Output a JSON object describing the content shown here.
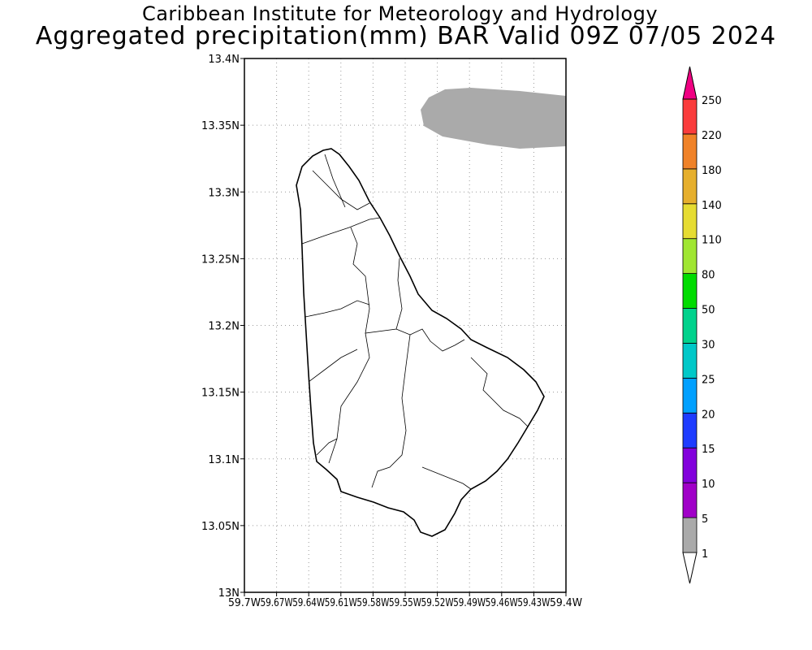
{
  "title": "Caribbean Institute for Meteorology and Hydrology",
  "subtitle": "Aggregated precipitation(mm) BAR Valid 09Z 07/05 2024",
  "map": {
    "lat_range": [
      13.0,
      13.4
    ],
    "lon_range": [
      -59.7,
      -59.4
    ],
    "lat_ticks": [
      "13N",
      "13.05N",
      "13.1N",
      "13.15N",
      "13.2N",
      "13.25N",
      "13.3N",
      "13.35N",
      "13.4N"
    ],
    "lon_ticks": [
      "59.7W",
      "59.67W",
      "59.64W",
      "59.61W",
      "59.58W",
      "59.55W",
      "59.52W",
      "59.49W",
      "59.46W",
      "59.43W",
      "59.4W"
    ],
    "precip_area_color": "#aaaaaa"
  },
  "colorbar": {
    "labels": [
      "1",
      "5",
      "10",
      "15",
      "20",
      "25",
      "30",
      "50",
      "80",
      "110",
      "140",
      "180",
      "220",
      "250"
    ],
    "colors": [
      "#aaaaaa",
      "#a000c8",
      "#8200dc",
      "#1e3cff",
      "#00a0ff",
      "#00c8c8",
      "#00d28c",
      "#00dc00",
      "#a0e632",
      "#e6dc32",
      "#e6af2d",
      "#f08228",
      "#fa3c3c"
    ],
    "over_color": "#f00082"
  }
}
